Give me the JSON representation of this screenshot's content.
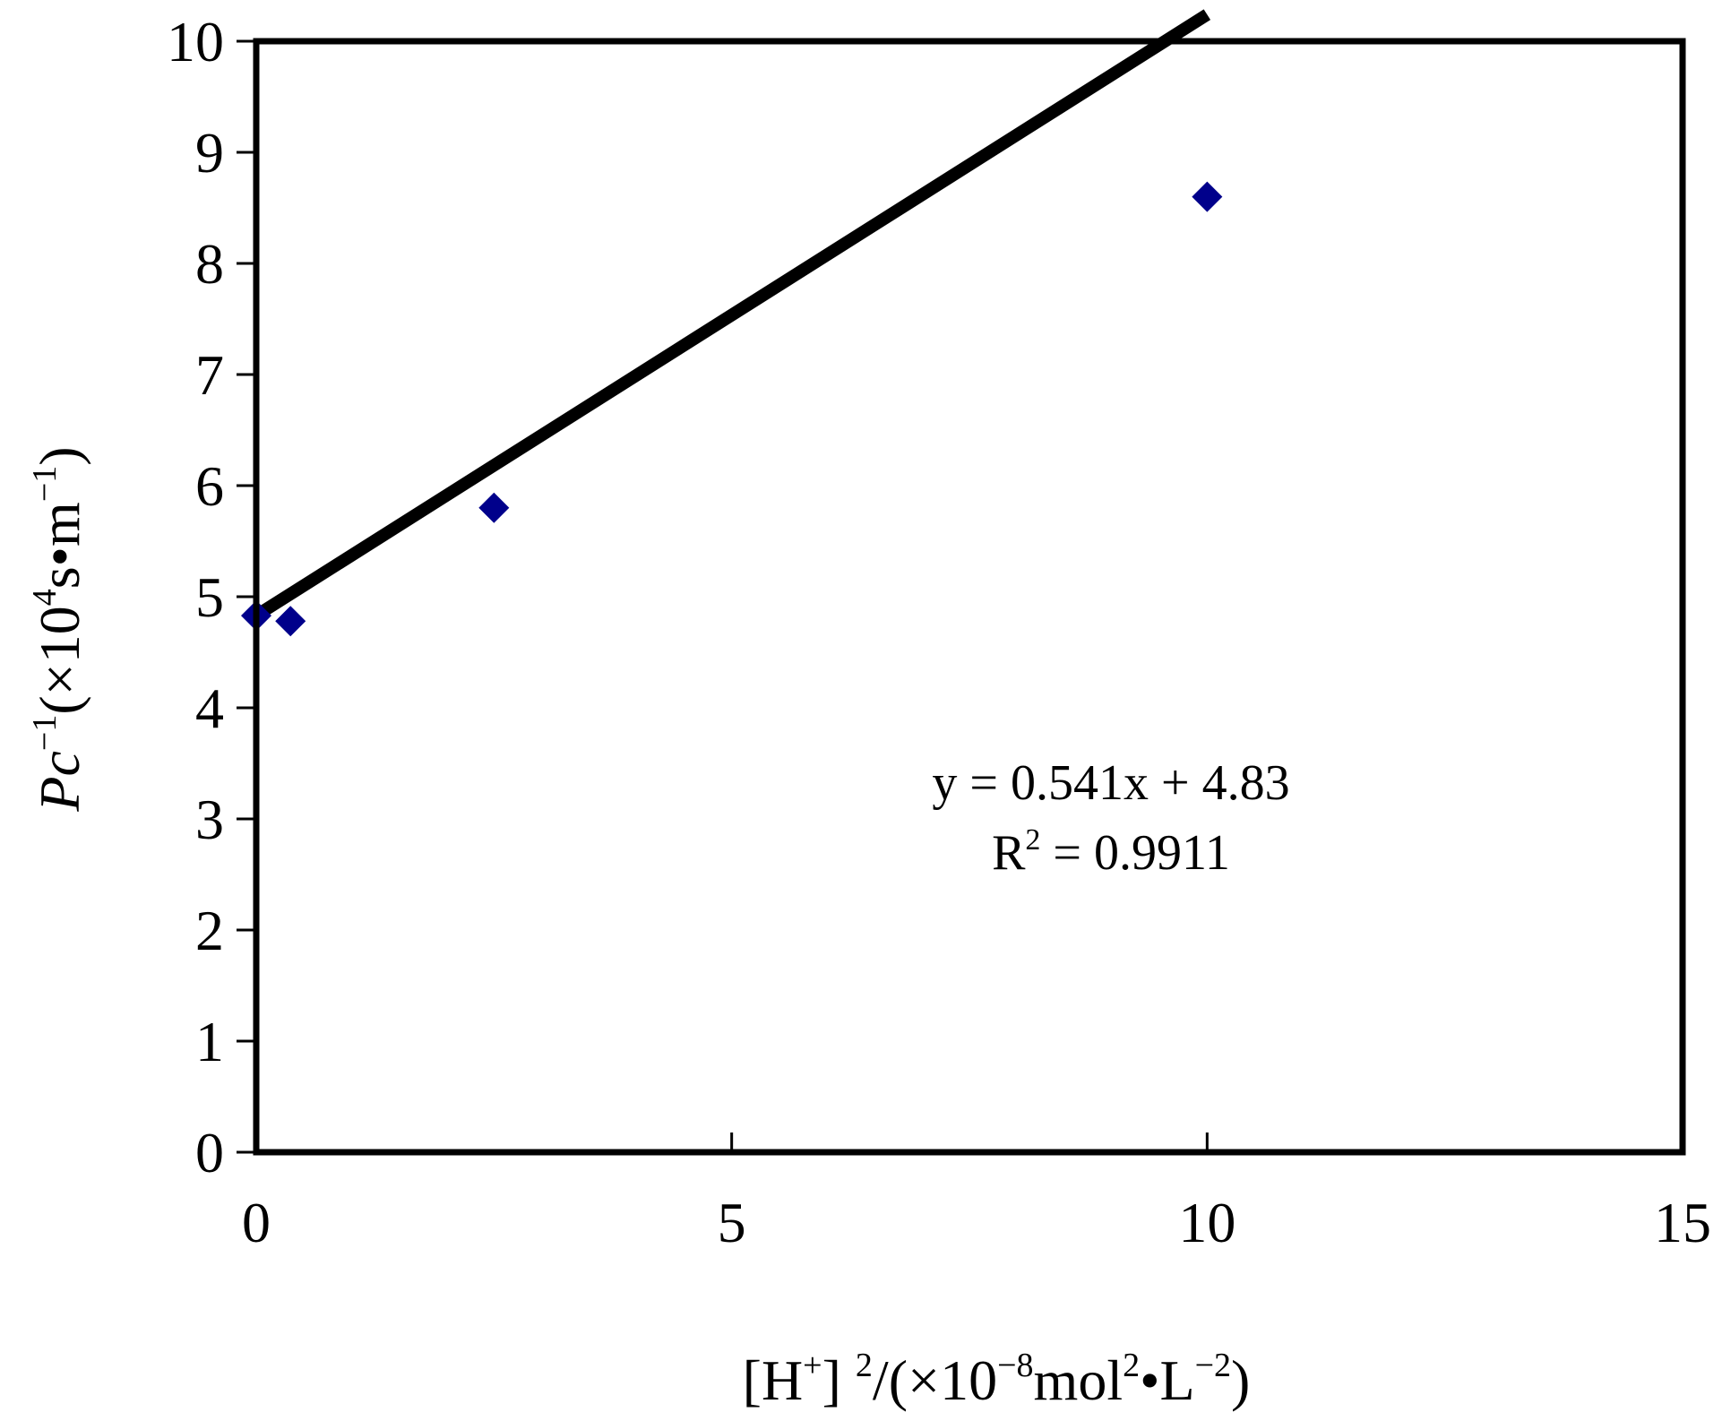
{
  "chart_data": {
    "type": "scatter",
    "xlim": [
      0,
      15
    ],
    "ylim": [
      0,
      10
    ],
    "x_ticks": [
      "0",
      "5",
      "10",
      "15"
    ],
    "y_ticks": [
      "0",
      "1",
      "2",
      "3",
      "4",
      "5",
      "6",
      "7",
      "8",
      "9",
      "10"
    ],
    "points": [
      {
        "x": 0.0,
        "y": 4.83
      },
      {
        "x": 0.36,
        "y": 4.78
      },
      {
        "x": 2.5,
        "y": 5.8
      },
      {
        "x": 10.0,
        "y": 8.6
      }
    ],
    "trendline": {
      "slope": 0.541,
      "intercept": 4.83,
      "x_range": [
        0,
        10
      ]
    },
    "equation": "y = 0.541x + 4.83",
    "r2_prefix": "R",
    "r2_sup": "2",
    "r2_value": " = 0.9911",
    "xlabel": {
      "a": "[H",
      "a_sup": "+",
      "b": "] ",
      "b_sup": "2",
      "c": "/(×10",
      "c_sup": "−8",
      "d": "mol",
      "d_sup": "2",
      "e": "•L",
      "e_sup": "−2",
      "f": ")"
    },
    "ylabel": {
      "a": "Pc",
      "a_sup": "−1",
      "b": "(×10",
      "b_sup": "4",
      "c": "s•m",
      "c_sup": "−1",
      "d": ")"
    },
    "colors": {
      "marker": "#00008B",
      "line": "#000000",
      "frame": "#000000"
    },
    "grid": false
  }
}
